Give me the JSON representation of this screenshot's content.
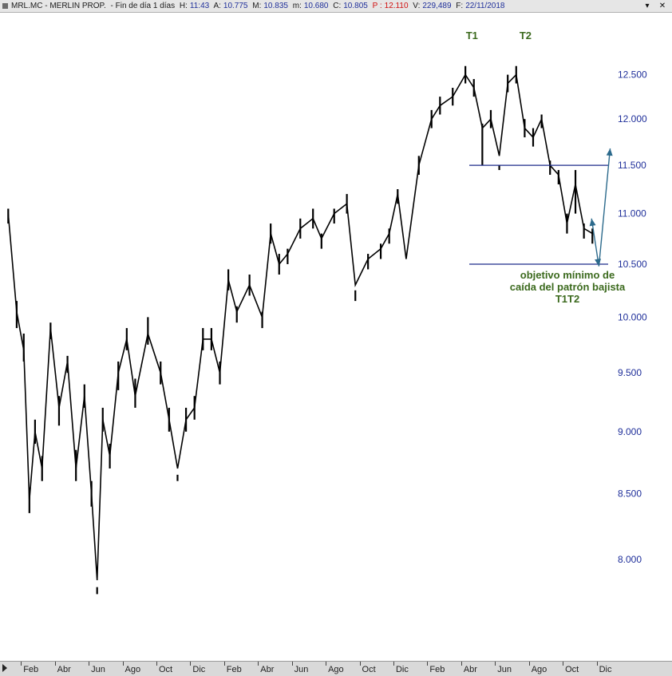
{
  "window": {
    "ticker": "MRL.MC - MERLIN PROP.",
    "period": "- Fin de día 1 días",
    "h_label": "H:",
    "h_value": "11:43",
    "a_label": "A:",
    "a_value": "10.775",
    "m_label": "M:",
    "m_value": "10.835",
    "min_label": "m:",
    "min_value": "10.680",
    "c_label": "C:",
    "c_value": "10.805",
    "p_label": "P :",
    "p_value": "12.110",
    "v_label": "V:",
    "v_value": "229,489",
    "f_label": "F:",
    "f_value": "22/11/2018",
    "minimize_glyph": "▾",
    "close_glyph": "✕"
  },
  "colors": {
    "price": "#000000",
    "axis_labels": "#1f2f9a",
    "pattern_lines": "#1c2a8a",
    "arrow": "#2c6a8c",
    "annotation": "#3c6a1e"
  },
  "chart_data": {
    "type": "line",
    "style": "ohlc-bars",
    "ylim": [
      7.55,
      12.85
    ],
    "yscale": "log",
    "yticks": [
      "12.500",
      "12.000",
      "11.500",
      "11.000",
      "10.500",
      "10.000",
      "9.500",
      "9.000",
      "8.500",
      "8.000"
    ],
    "x_ticks": [
      "Feb",
      "Abr",
      "Jun",
      "Ago",
      "Oct",
      "Dic",
      "Feb",
      "Abr",
      "Jun",
      "Ago",
      "Oct",
      "Dic",
      "Feb",
      "Abr",
      "Jun",
      "Ago",
      "Oct",
      "Dic"
    ],
    "x_start": "2016-01",
    "x_end": "2019-02",
    "series": [
      {
        "x": [
          "2016-01",
          "2016-01",
          "2016-02",
          "2016-02",
          "2016-02",
          "2016-03",
          "2016-03",
          "2016-04",
          "2016-04",
          "2016-05",
          "2016-05",
          "2016-06",
          "2016-06",
          "2016-06",
          "2016-07",
          "2016-07",
          "2016-08",
          "2016-08",
          "2016-09",
          "2016-10",
          "2016-10",
          "2016-11",
          "2016-11",
          "2016-12",
          "2016-12",
          "2017-01",
          "2017-01",
          "2017-02",
          "2017-02",
          "2017-03",
          "2017-04",
          "2017-04",
          "2017-05",
          "2017-05",
          "2017-06",
          "2017-07",
          "2017-07",
          "2017-08",
          "2017-09",
          "2017-09",
          "2017-10",
          "2017-11",
          "2017-11",
          "2017-12",
          "2017-12",
          "2018-01",
          "2018-02",
          "2018-02",
          "2018-03",
          "2018-04",
          "2018-04",
          "2018-05",
          "2018-05",
          "2018-06",
          "2018-06",
          "2018-07",
          "2018-07",
          "2018-08",
          "2018-08",
          "2018-09",
          "2018-09",
          "2018-10",
          "2018-10",
          "2018-11",
          "2018-11"
        ],
        "y": [
          11.0,
          10.05,
          9.7,
          8.45,
          9.0,
          8.7,
          9.9,
          9.2,
          9.6,
          8.7,
          9.3,
          8.5,
          7.85,
          9.1,
          8.8,
          9.5,
          9.8,
          9.3,
          9.85,
          9.5,
          9.1,
          8.7,
          9.1,
          9.2,
          9.8,
          9.8,
          9.5,
          10.35,
          10.05,
          10.3,
          10.0,
          10.8,
          10.5,
          10.6,
          10.85,
          10.95,
          10.75,
          11.0,
          11.1,
          10.3,
          10.55,
          10.65,
          10.8,
          11.2,
          10.55,
          11.5,
          12.0,
          12.15,
          12.25,
          12.5,
          12.35,
          11.9,
          12.0,
          11.6,
          12.4,
          12.5,
          11.9,
          11.8,
          12.0,
          11.5,
          11.4,
          10.9,
          11.3,
          10.85,
          10.8
        ],
        "high": [
          11.05,
          10.15,
          9.85,
          8.55,
          9.1,
          8.8,
          9.95,
          9.3,
          9.65,
          8.85,
          9.4,
          8.6,
          7.8,
          9.2,
          8.9,
          9.6,
          9.9,
          9.45,
          10.0,
          9.6,
          9.2,
          8.65,
          9.2,
          9.3,
          9.9,
          9.9,
          9.6,
          10.45,
          10.1,
          10.4,
          10.05,
          10.9,
          10.6,
          10.65,
          10.95,
          11.05,
          10.8,
          11.05,
          11.2,
          10.25,
          10.6,
          10.7,
          10.85,
          11.25,
          10.5,
          11.6,
          12.1,
          12.25,
          12.35,
          12.6,
          12.45,
          11.95,
          12.1,
          11.5,
          12.5,
          12.6,
          12.0,
          11.9,
          12.05,
          11.55,
          11.45,
          11.0,
          11.45,
          10.9,
          10.85
        ],
        "low": [
          10.9,
          9.9,
          9.6,
          8.35,
          8.9,
          8.6,
          9.8,
          9.05,
          9.5,
          8.6,
          9.2,
          8.4,
          7.75,
          9.0,
          8.7,
          9.35,
          9.7,
          9.2,
          9.75,
          9.4,
          9.0,
          8.6,
          9.0,
          9.1,
          9.7,
          9.7,
          9.4,
          10.25,
          9.95,
          10.2,
          9.9,
          10.7,
          10.4,
          10.5,
          10.75,
          10.85,
          10.65,
          10.9,
          11.0,
          10.15,
          10.45,
          10.55,
          10.7,
          11.1,
          10.5,
          11.4,
          11.9,
          12.05,
          12.15,
          12.4,
          12.25,
          11.5,
          11.9,
          11.45,
          12.3,
          12.4,
          11.8,
          11.7,
          11.9,
          11.4,
          11.3,
          10.8,
          11.0,
          10.75,
          10.7
        ]
      }
    ],
    "pattern": {
      "peak_labels": [
        "T1",
        "T2"
      ],
      "peak_dates": [
        "2018-04-20",
        "2018-07-25"
      ],
      "neckline": 11.5,
      "target": 10.5,
      "annotation": [
        "objetivo mínimo de",
        "caída del patrón bajista",
        "T1T2"
      ],
      "projection": [
        {
          "x": "2018-11-22",
          "y": 10.95
        },
        {
          "x": "2018-12-05",
          "y": 10.48
        },
        {
          "x": "2018-12-25",
          "y": 11.68
        }
      ]
    },
    "grid": false,
    "title": ""
  }
}
